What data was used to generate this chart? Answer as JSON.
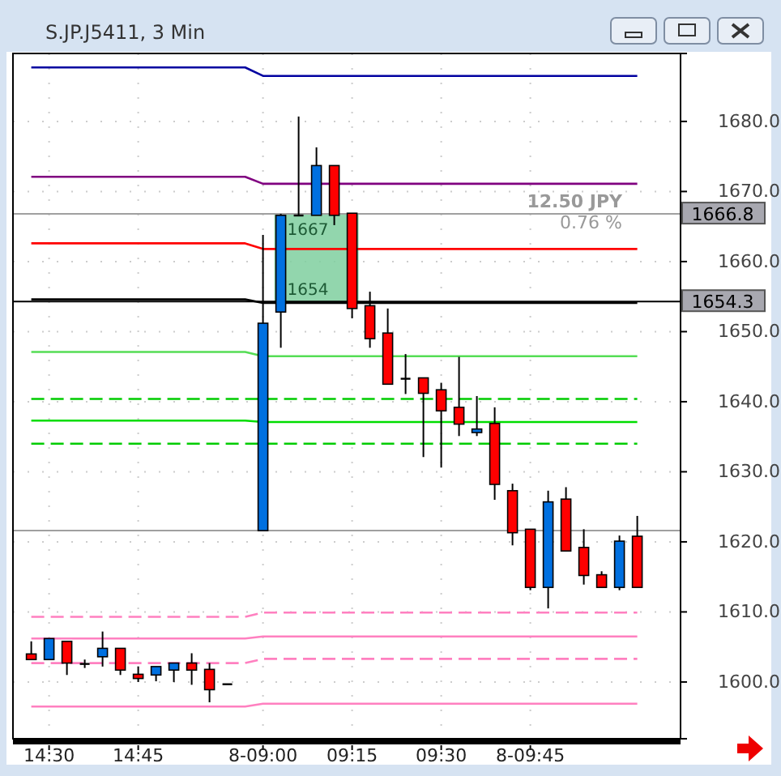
{
  "chart_data": {
    "type": "candlestick",
    "title": "S.JP.J5411, 3 Min",
    "categories": [
      null,
      "14:30",
      null,
      null,
      null,
      null,
      "14:45",
      null,
      null,
      null,
      null,
      null,
      null,
      "8-09:00",
      null,
      null,
      null,
      null,
      "09:15",
      null,
      null,
      null,
      null,
      "09:30",
      null,
      null,
      null,
      null,
      "8-09:45",
      null,
      null,
      null,
      null,
      null,
      null
    ],
    "ohlc": [
      [
        1604,
        1605.8,
        1603.2,
        1603.2
      ],
      [
        1603.2,
        1606.2,
        1603.2,
        1606.2
      ],
      [
        1605.8,
        1605.8,
        1601,
        1602.7
      ],
      [
        1602.6,
        1603.2,
        1602,
        1602.6
      ],
      [
        1603.6,
        1607.2,
        1602.2,
        1604.8
      ],
      [
        1604.8,
        1604.8,
        1601,
        1601.7
      ],
      [
        1601.1,
        1602.2,
        1600,
        1600.5
      ],
      [
        1601,
        1602.2,
        1600.1,
        1602.2
      ],
      [
        1601.7,
        1602.7,
        1600,
        1602.7
      ],
      [
        1602.7,
        1604.1,
        1599.6,
        1601.7
      ],
      [
        1601.8,
        1602.7,
        1597.1,
        1598.9
      ],
      [
        1599.7,
        1599.7,
        1599.7,
        1599.7
      ],
      null,
      [
        1621.6,
        1663.8,
        1621.6,
        1651.2
      ],
      [
        1652.8,
        1666.8,
        1647.7,
        1666.6
      ],
      [
        1666.6,
        1680.7,
        1666.6,
        1666.6
      ],
      [
        1666.6,
        1676.3,
        1666.6,
        1673.7
      ],
      [
        1673.7,
        1673.7,
        1665.2,
        1666.6
      ],
      [
        1666.9,
        1666.9,
        1651.9,
        1653.3
      ],
      [
        1653.7,
        1655.7,
        1647.7,
        1649
      ],
      [
        1649.8,
        1653.3,
        1642.5,
        1642.5
      ],
      [
        1643.3,
        1646.8,
        1641.1,
        1643.3
      ],
      [
        1643.4,
        1643.4,
        1632.1,
        1641.2
      ],
      [
        1641.7,
        1642.7,
        1630.6,
        1638.7
      ],
      [
        1639.2,
        1646.4,
        1635.1,
        1636.8
      ],
      [
        1635.6,
        1640.8,
        1635.1,
        1636.1
      ],
      [
        1636.9,
        1639.2,
        1626,
        1628.2
      ],
      [
        1627.3,
        1628.3,
        1619.5,
        1621.3
      ],
      [
        1621.8,
        1621.8,
        1613.1,
        1613.5
      ],
      [
        1613.5,
        1627.3,
        1610.5,
        1625.7
      ],
      [
        1626.1,
        1627.8,
        1618.7,
        1618.7
      ],
      [
        1619.2,
        1621.8,
        1613.9,
        1615.2
      ],
      [
        1615.3,
        1615.8,
        1613.5,
        1613.5
      ],
      [
        1613.5,
        1620.9,
        1613.1,
        1620.1
      ],
      [
        1620.8,
        1623.7,
        1613.5,
        1613.5
      ]
    ],
    "colors": [
      "#ff0000",
      "#0070e0",
      "#ff0000",
      "#000000",
      "#0070e0",
      "#ff0000",
      "#ff0000",
      "#0070e0",
      "#0070e0",
      "#ff0000",
      "#ff0000",
      "#000000",
      null,
      "#0070e0",
      "#0070e0",
      "#000000",
      "#0070e0",
      "#ff0000",
      "#ff0000",
      "#ff0000",
      "#ff0000",
      "#000000",
      "#ff0000",
      "#ff0000",
      "#ff0000",
      "#0070e0",
      "#ff0000",
      "#ff0000",
      "#ff0000",
      "#0070e0",
      "#ff0000",
      "#ff0000",
      "#ff0000",
      "#0070e0",
      "#ff0000"
    ],
    "series": [
      {
        "type": "line",
        "color": "#0000a0",
        "line_style": "solid",
        "values": [
          1687.7,
          1687.7,
          1687.7,
          1687.7,
          1687.7,
          1687.7,
          1687.7,
          1687.7,
          1687.7,
          1687.7,
          1687.7,
          1687.7,
          1687.7,
          1686.5,
          1686.5,
          1686.5,
          1686.5,
          1686.5,
          1686.5,
          1686.5,
          1686.5,
          1686.5,
          1686.5,
          1686.5,
          1686.5,
          1686.5,
          1686.5,
          1686.5,
          1686.5,
          1686.5,
          1686.5,
          1686.5,
          1686.5,
          1686.5,
          1686.5
        ]
      },
      {
        "type": "line",
        "color": "#800080",
        "line_style": "solid",
        "values": [
          1672.1,
          1672.1,
          1672.1,
          1672.1,
          1672.1,
          1672.1,
          1672.1,
          1672.1,
          1672.1,
          1672.1,
          1672.1,
          1672.1,
          1672.1,
          1671.1,
          1671.1,
          1671.1,
          1671.1,
          1671.1,
          1671.1,
          1671.1,
          1671.1,
          1671.1,
          1671.1,
          1671.1,
          1671.1,
          1671.1,
          1671.1,
          1671.1,
          1671.1,
          1671.1,
          1671.1,
          1671.1,
          1671.1,
          1671.1,
          1671.1
        ]
      },
      {
        "type": "line",
        "color": "#ff0000",
        "line_style": "solid",
        "values": [
          1662.6,
          1662.6,
          1662.6,
          1662.6,
          1662.6,
          1662.6,
          1662.6,
          1662.6,
          1662.6,
          1662.6,
          1662.6,
          1662.6,
          1662.6,
          1661.8,
          1661.8,
          1661.8,
          1661.8,
          1661.8,
          1661.8,
          1661.8,
          1661.8,
          1661.8,
          1661.8,
          1661.8,
          1661.8,
          1661.8,
          1661.8,
          1661.8,
          1661.8,
          1661.8,
          1661.8,
          1661.8,
          1661.8,
          1661.8,
          1661.8
        ]
      },
      {
        "type": "line",
        "color": "#000000",
        "line_style": "solid",
        "values": [
          1654.6,
          1654.6,
          1654.6,
          1654.6,
          1654.6,
          1654.6,
          1654.6,
          1654.6,
          1654.6,
          1654.6,
          1654.6,
          1654.6,
          1654.6,
          1654.1,
          1654.1,
          1654.1,
          1654.1,
          1654.1,
          1654.1,
          1654.1,
          1654.1,
          1654.1,
          1654.1,
          1654.1,
          1654.1,
          1654.1,
          1654.1,
          1654.1,
          1654.1,
          1654.1,
          1654.1,
          1654.1,
          1654.1,
          1654.1,
          1654.1
        ]
      },
      {
        "type": "line",
        "color": "#55dd55",
        "line_style": "solid",
        "values": [
          1647.1,
          1647.1,
          1647.1,
          1647.1,
          1647.1,
          1647.1,
          1647.1,
          1647.1,
          1647.1,
          1647.1,
          1647.1,
          1647.1,
          1647.1,
          1646.5,
          1646.5,
          1646.5,
          1646.5,
          1646.5,
          1646.5,
          1646.5,
          1646.5,
          1646.5,
          1646.5,
          1646.5,
          1646.5,
          1646.5,
          1646.5,
          1646.5,
          1646.5,
          1646.5,
          1646.5,
          1646.5,
          1646.5,
          1646.5,
          1646.5
        ]
      },
      {
        "type": "line",
        "color": "#00cc00",
        "line_style": "dashed",
        "values": [
          1640.4,
          1640.4,
          1640.4,
          1640.4,
          1640.4,
          1640.4,
          1640.4,
          1640.4,
          1640.4,
          1640.4,
          1640.4,
          1640.4,
          1640.4,
          1640.4,
          1640.4,
          1640.4,
          1640.4,
          1640.4,
          1640.4,
          1640.4,
          1640.4,
          1640.4,
          1640.4,
          1640.4,
          1640.4,
          1640.4,
          1640.4,
          1640.4,
          1640.4,
          1640.4,
          1640.4,
          1640.4,
          1640.4,
          1640.4,
          1640.4
        ]
      },
      {
        "type": "line",
        "color": "#00dd00",
        "line_style": "solid",
        "values": [
          1637.3,
          1637.3,
          1637.3,
          1637.3,
          1637.3,
          1637.3,
          1637.3,
          1637.3,
          1637.3,
          1637.3,
          1637.3,
          1637.3,
          1637.3,
          1637.1,
          1637.1,
          1637.1,
          1637.1,
          1637.1,
          1637.1,
          1637.1,
          1637.1,
          1637.1,
          1637.1,
          1637.1,
          1637.1,
          1637.1,
          1637.1,
          1637.1,
          1637.1,
          1637.1,
          1637.1,
          1637.1,
          1637.1,
          1637.1,
          1637.1
        ]
      },
      {
        "type": "line",
        "color": "#00cc00",
        "line_style": "dashed",
        "values": [
          1634,
          1634,
          1634,
          1634,
          1634,
          1634,
          1634,
          1634,
          1634,
          1634,
          1634,
          1634,
          1634,
          1634,
          1634,
          1634,
          1634,
          1634,
          1634,
          1634,
          1634,
          1634,
          1634,
          1634,
          1634,
          1634,
          1634,
          1634,
          1634,
          1634,
          1634,
          1634,
          1634,
          1634,
          1634
        ]
      },
      {
        "type": "line",
        "color": "#ff80c0",
        "line_style": "dashed",
        "values": [
          1609.3,
          1609.3,
          1609.3,
          1609.3,
          1609.3,
          1609.3,
          1609.3,
          1609.3,
          1609.3,
          1609.3,
          1609.3,
          1609.3,
          1609.3,
          1609.9,
          1609.9,
          1609.9,
          1609.9,
          1609.9,
          1609.9,
          1609.9,
          1609.9,
          1609.9,
          1609.9,
          1609.9,
          1609.9,
          1609.9,
          1609.9,
          1609.9,
          1609.9,
          1609.9,
          1609.9,
          1609.9,
          1609.9,
          1609.9,
          1609.9
        ]
      },
      {
        "type": "line",
        "color": "#ff80c0",
        "line_style": "solid",
        "values": [
          1606.2,
          1606.2,
          1606.2,
          1606.2,
          1606.2,
          1606.2,
          1606.2,
          1606.2,
          1606.2,
          1606.2,
          1606.2,
          1606.2,
          1606.2,
          1606.5,
          1606.5,
          1606.5,
          1606.5,
          1606.5,
          1606.5,
          1606.5,
          1606.5,
          1606.5,
          1606.5,
          1606.5,
          1606.5,
          1606.5,
          1606.5,
          1606.5,
          1606.5,
          1606.5,
          1606.5,
          1606.5,
          1606.5,
          1606.5,
          1606.5
        ]
      },
      {
        "type": "line",
        "color": "#ff80c0",
        "line_style": "dashed",
        "values": [
          1602.7,
          1602.7,
          1602.7,
          1602.7,
          1602.7,
          1602.7,
          1602.7,
          1602.7,
          1602.7,
          1602.7,
          1602.7,
          1602.7,
          1602.7,
          1603.3,
          1603.3,
          1603.3,
          1603.3,
          1603.3,
          1603.3,
          1603.3,
          1603.3,
          1603.3,
          1603.3,
          1603.3,
          1603.3,
          1603.3,
          1603.3,
          1603.3,
          1603.3,
          1603.3,
          1603.3,
          1603.3,
          1603.3,
          1603.3,
          1603.3
        ]
      },
      {
        "type": "line",
        "color": "#ff80c0",
        "line_style": "solid",
        "values": [
          1596.5,
          1596.5,
          1596.5,
          1596.5,
          1596.5,
          1596.5,
          1596.5,
          1596.5,
          1596.5,
          1596.5,
          1596.5,
          1596.5,
          1596.5,
          1596.9,
          1596.9,
          1596.9,
          1596.9,
          1596.9,
          1596.9,
          1596.9,
          1596.9,
          1596.9,
          1596.9,
          1596.9,
          1596.9,
          1596.9,
          1596.9,
          1596.9,
          1596.9,
          1596.9,
          1596.9,
          1596.9,
          1596.9,
          1596.9,
          1596.9
        ]
      }
    ],
    "ylim": [
      1591.9,
      1689.7
    ],
    "yticks": [
      {
        "value": 1600,
        "label": "1600.0"
      },
      {
        "value": 1610,
        "label": "1610.0"
      },
      {
        "value": 1620,
        "label": "1620.0"
      },
      {
        "value": 1630,
        "label": "1630.0"
      },
      {
        "value": 1640,
        "label": "1640.0"
      },
      {
        "value": 1650,
        "label": "1650.0"
      },
      {
        "value": 1660,
        "label": "1660.0"
      },
      {
        "value": 1670,
        "label": "1670.0"
      },
      {
        "value": 1680,
        "label": "1680.0"
      }
    ],
    "ref_lines": [
      {
        "axis": "y",
        "value": 1621.6,
        "color": "#a0a0a0"
      },
      {
        "axis": "y",
        "value": 1666.8,
        "label": "1666.8",
        "color": "#a0a0a0"
      },
      {
        "axis": "y",
        "value": 1654.3,
        "label": "1654.3",
        "color": "#000000"
      }
    ],
    "bands": [
      {
        "axis": "y",
        "from": 1654.3,
        "to": 1666.8,
        "color": "#7fcf9f"
      }
    ],
    "annotations": [
      "1667",
      "1654",
      "12.50 JPY",
      "0.76 %"
    ],
    "grid": true,
    "marker": "none"
  }
}
